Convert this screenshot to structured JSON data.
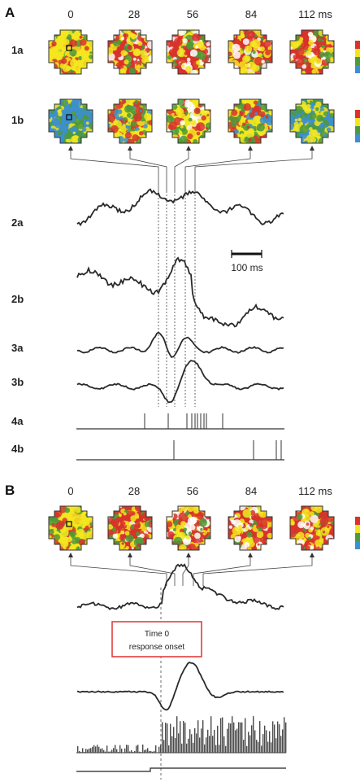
{
  "figure": {
    "panel_a": {
      "letter": "A",
      "time_labels": [
        "0",
        "28",
        "56",
        "84",
        "112 ms"
      ],
      "row_labels": [
        "1a",
        "1b",
        "2a",
        "2b",
        "3a",
        "3b",
        "4a",
        "4b"
      ],
      "scale_bar_label": "100 ms"
    },
    "panel_b": {
      "letter": "B",
      "time_labels": [
        "0",
        "28",
        "56",
        "84",
        "112 ms"
      ],
      "callout_line1": "Time 0",
      "callout_line2": "response onset"
    },
    "colors": {
      "map_blue": "#3c8fd0",
      "map_green": "#4e9a3a",
      "map_yellow": "#f3e61e",
      "map_red": "#d8322b",
      "map_white": "#ffffff",
      "callout_border": "#e03030",
      "trace": "#2a2a2a"
    }
  }
}
